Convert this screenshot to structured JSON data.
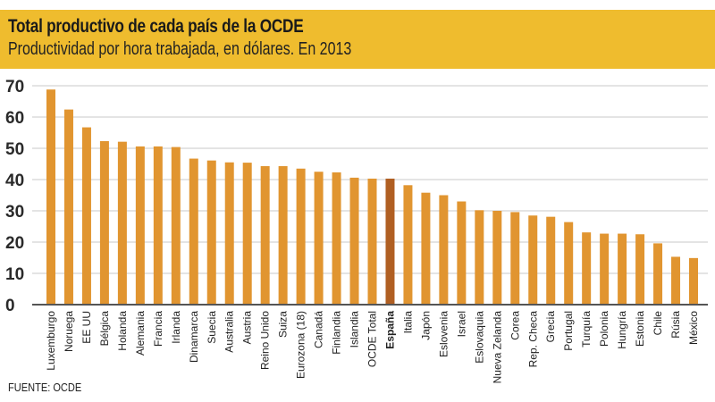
{
  "header": {
    "title": "Total productivo de cada país de la OCDE",
    "subtitle": "Productividad por hora trabajada, en dólares. En 2013"
  },
  "source": "FUENTE: OCDE",
  "colors": {
    "header": "#efbc2e",
    "bar": "#e19530",
    "highlight": "#b05f22"
  },
  "chart_data": {
    "type": "bar",
    "title": "Total productivo de cada país de la OCDE",
    "subtitle": "Productividad por hora trabajada, en dólares. En 2013",
    "ylim": [
      0,
      70
    ],
    "yticks": [
      0,
      10,
      20,
      30,
      40,
      50,
      60,
      70
    ],
    "grid": true,
    "highlight": "España",
    "categories": [
      "Luxemburgo",
      "Noruega",
      "EE UU",
      "Bélgica",
      "Holanda",
      "Alemania",
      "Francia",
      "Irlanda",
      "Dinamarca",
      "Suecia",
      "Australia",
      "Austria",
      "Reino Unido",
      "Suiza",
      "Eurozona (18)",
      "Canadá",
      "Finlandia",
      "Islandia",
      "OCDE Total",
      "España",
      "Italia",
      "Japón",
      "Eslovenia",
      "Israel",
      "Eslovaquia",
      "Nueva Zelanda",
      "Corea",
      "Rep. Checa",
      "Grecia",
      "Portugal",
      "Turquía",
      "Polonia",
      "Hungría",
      "Estonia",
      "Chile",
      "Rúsia",
      "México"
    ],
    "values": [
      68.8,
      62.4,
      56.7,
      52.3,
      52.1,
      50.6,
      50.6,
      50.4,
      46.7,
      46.1,
      45.5,
      45.4,
      44.3,
      44.3,
      43.5,
      42.5,
      42.3,
      40.6,
      40.3,
      40.3,
      38.2,
      35.8,
      35.0,
      33.0,
      30.2,
      30.0,
      29.6,
      28.5,
      28.1,
      26.4,
      23.1,
      22.7,
      22.7,
      22.5,
      19.6,
      15.3,
      14.9
    ]
  }
}
